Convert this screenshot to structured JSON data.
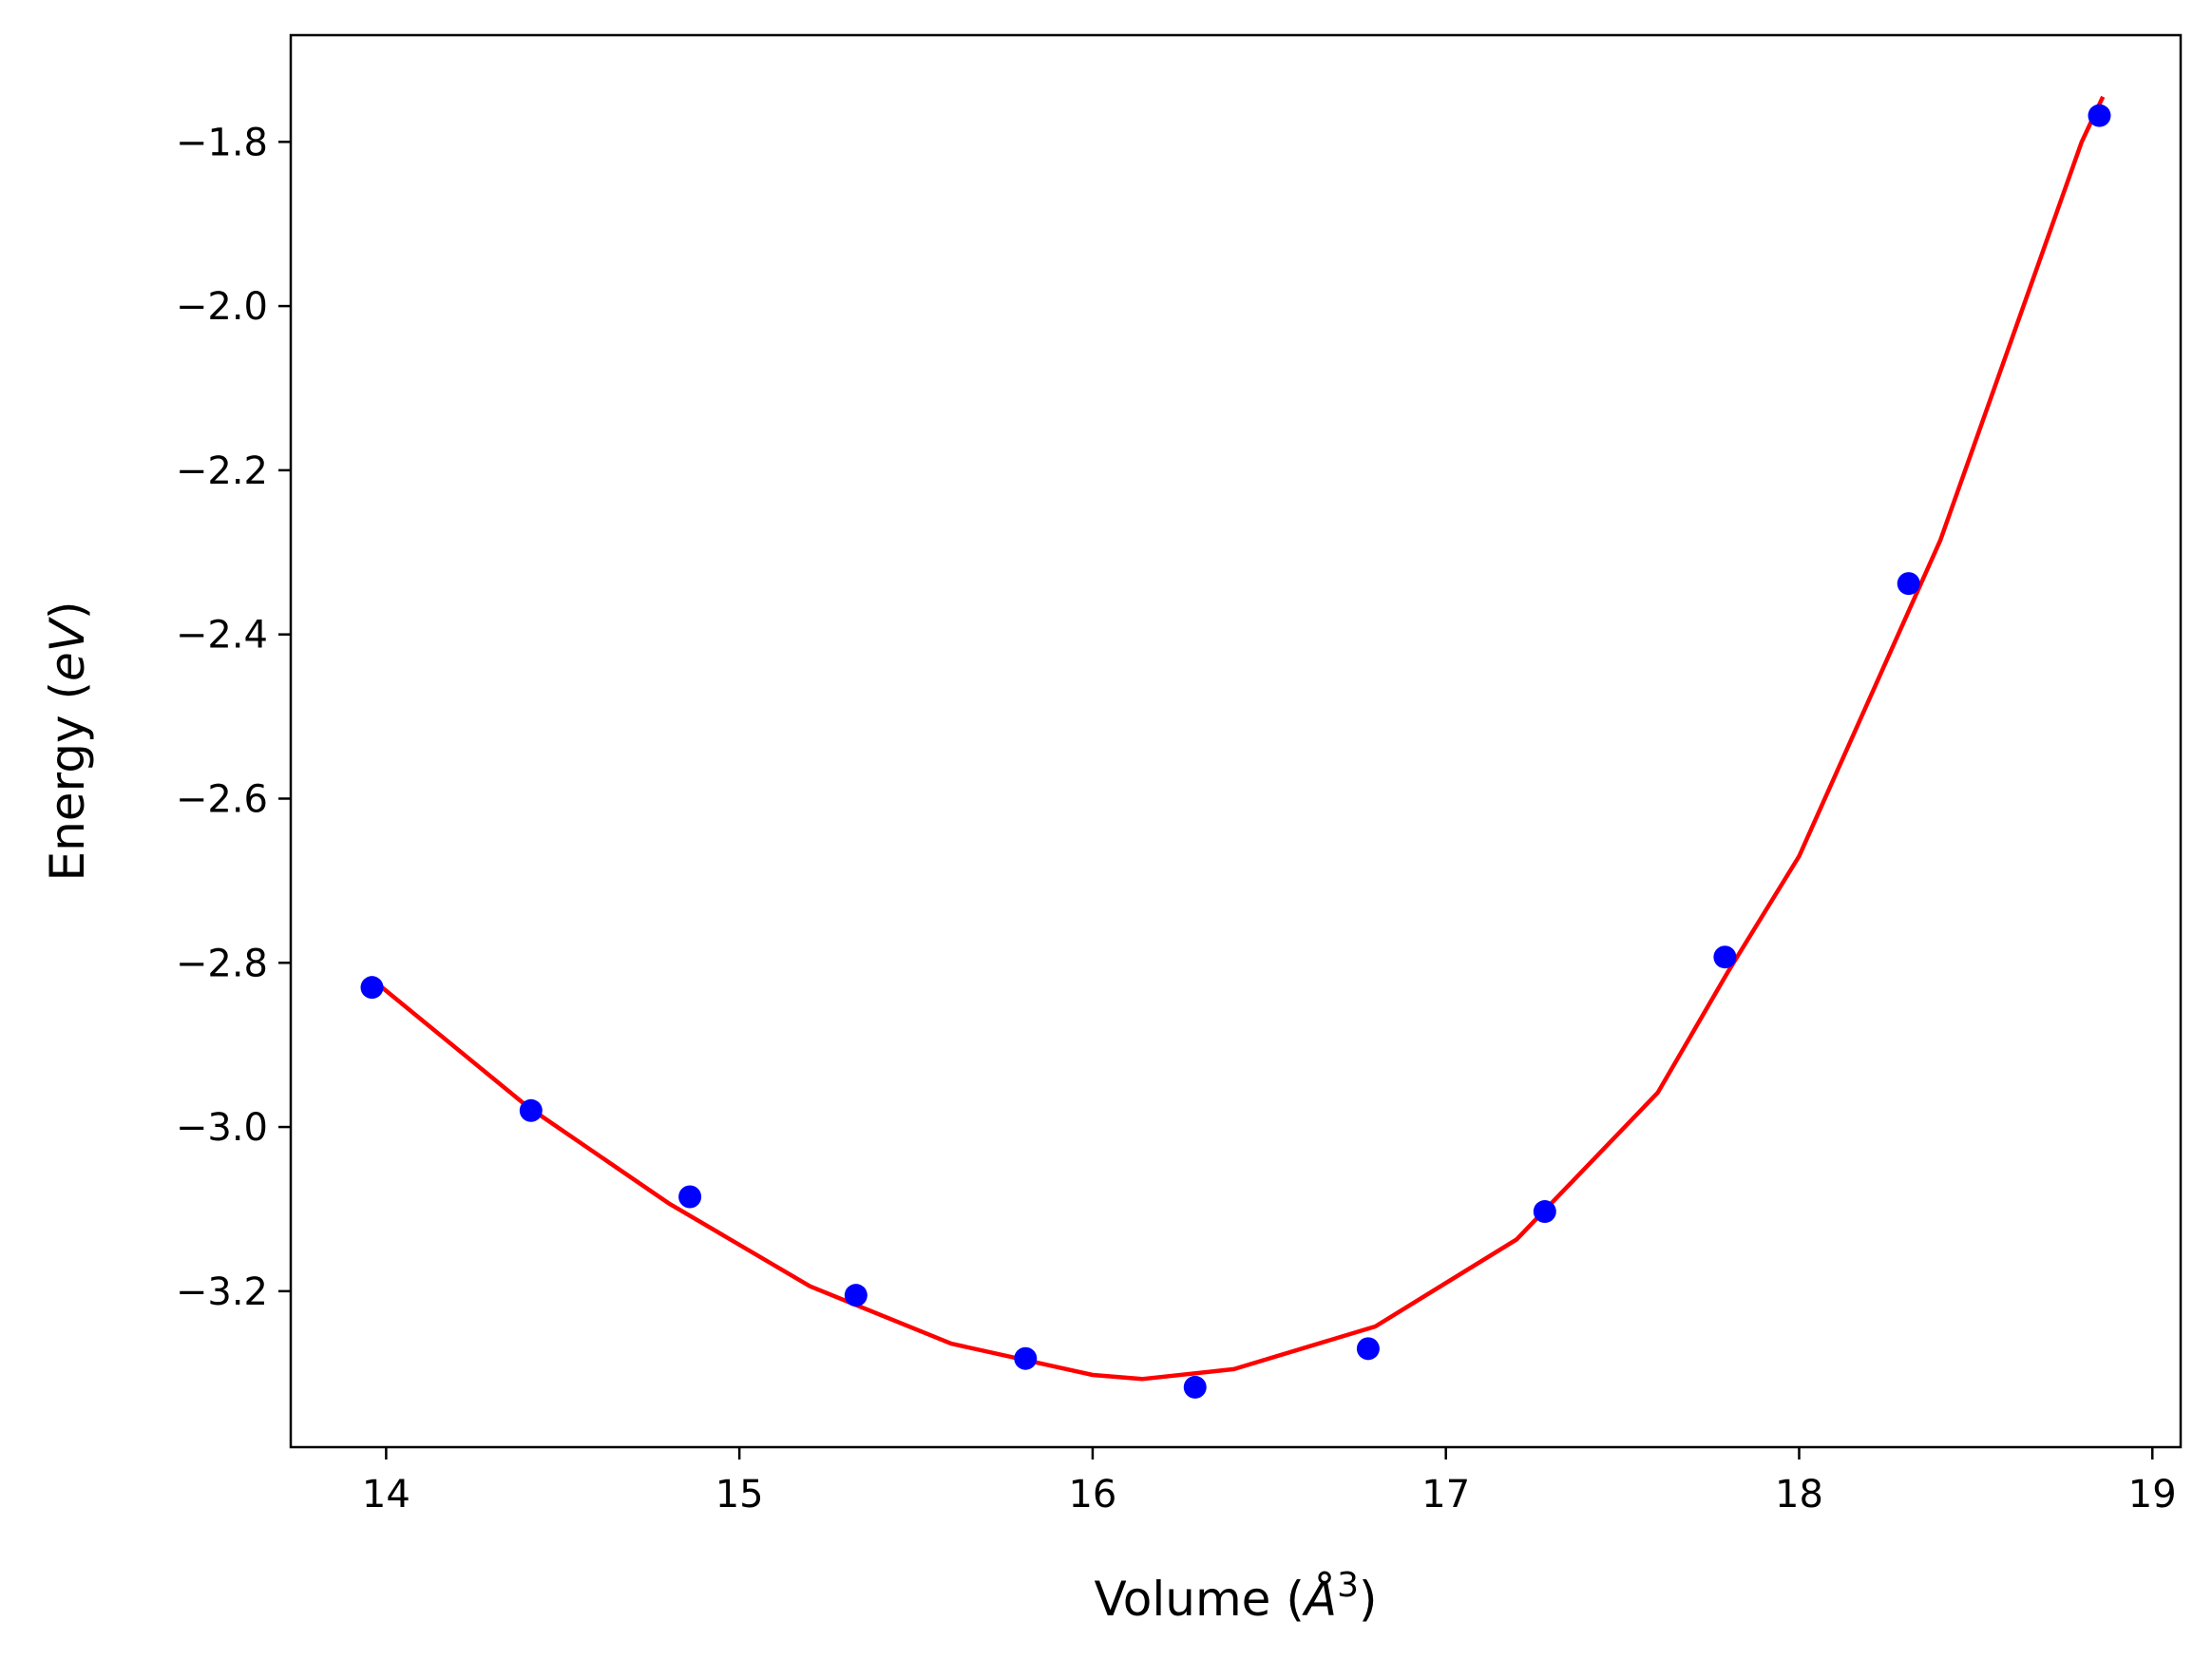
{
  "chart_data": {
    "type": "scatter",
    "xlabel": {
      "prefix": "Volume (",
      "italic": "Å",
      "sup": "3",
      "suffix": ")"
    },
    "ylabel": {
      "prefix": "Energy (",
      "italic": "eV",
      "suffix": ")"
    },
    "xlim": [
      13.73,
      19.08
    ],
    "ylim": [
      -3.39,
      -1.67
    ],
    "xticks": [
      14,
      15,
      16,
      17,
      18,
      19
    ],
    "yticks": [
      -3.2,
      -3.0,
      -2.8,
      -2.6,
      -2.4,
      -2.2,
      -2.0,
      -1.8
    ],
    "xtick_labels": [
      "14",
      "15",
      "16",
      "17",
      "18",
      "19"
    ],
    "ytick_labels": [
      "−3.2",
      "−3.0",
      "−2.8",
      "−2.6",
      "−2.4",
      "−2.2",
      "−2.0",
      "−1.8"
    ],
    "grid": false,
    "legend": "none",
    "series": [
      {
        "kind": "points",
        "color": "#0000ff",
        "x": [
          13.96,
          14.41,
          14.86,
          15.33,
          15.81,
          16.29,
          16.78,
          17.28,
          17.79,
          18.31,
          18.85
        ],
        "y": [
          -2.83,
          -2.98,
          -3.085,
          -3.205,
          -3.282,
          -3.317,
          -3.27,
          -3.103,
          -2.793,
          -2.338,
          -1.768
        ]
      },
      {
        "kind": "fit-line",
        "color": "#ff0000",
        "x": [
          13.96,
          14.4,
          14.8,
          15.2,
          15.6,
          16.0,
          16.14,
          16.4,
          16.8,
          17.2,
          17.6,
          17.8,
          18.0,
          18.4,
          18.8,
          18.86
        ],
        "y": [
          -2.82,
          -2.975,
          -3.093,
          -3.194,
          -3.264,
          -3.302,
          -3.307,
          -3.295,
          -3.243,
          -3.137,
          -2.958,
          -2.81,
          -2.67,
          -2.285,
          -1.8,
          -1.745
        ]
      }
    ]
  }
}
